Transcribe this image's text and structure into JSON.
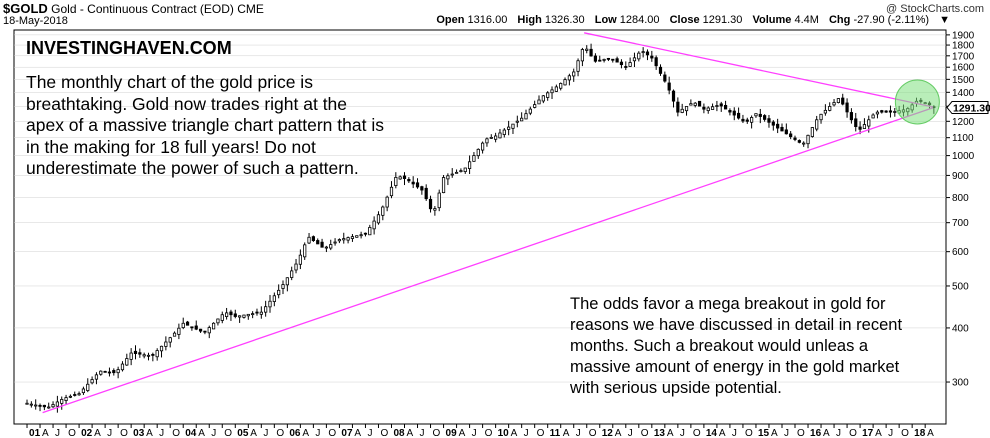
{
  "header": {
    "symbol": "$GOLD",
    "name": "Gold - Continuous Contract (EOD)",
    "exchange": "CME",
    "date": "18-May-2018",
    "open_label": "Open",
    "open": "1316.00",
    "high_label": "High",
    "high": "1326.30",
    "low_label": "Low",
    "low": "1284.00",
    "close_label": "Close",
    "close": "1291.30",
    "volume_label": "Volume",
    "volume": "4.4M",
    "chg_label": "Chg",
    "chg": "-27.90 (-2.11%)",
    "chg_arrow": "▼",
    "credit": "@ StockCharts.com"
  },
  "annotations": {
    "brand": "INVESTINGHAVEN.COM",
    "note1": "The monthly chart of the gold price is breathtaking. Gold now trades right at the apex of a massive triangle chart pattern that is in the making for 18 full years! Do not underestimate the power of such a pattern.",
    "note2": "The odds favor a mega breakout in gold for reasons we have discussed in detail in recent months. Such a breakout would unleas a massive amount of energy in the gold market with serious upside potential."
  },
  "colors": {
    "candle": "#000000",
    "trendline": "#ff3fff",
    "highlight_fill": "#7fe07f",
    "highlight_stroke": "#66cc66",
    "last_price_box": "#ffffff",
    "grid": "#d0d0d0"
  },
  "chart_data": {
    "type": "candlestick",
    "title": "$GOLD Gold - Continuous Contract (EOD) CME",
    "scale": "log",
    "ylim": [
      240,
      1950
    ],
    "y_ticks": [
      300,
      400,
      500,
      600,
      700,
      800,
      900,
      1000,
      1100,
      1200,
      1300,
      1400,
      1500,
      1600,
      1700,
      1800,
      1900
    ],
    "x_tick_labels": [
      "01",
      "A",
      "J",
      "O",
      "02",
      "A",
      "J",
      "O",
      "03",
      "A",
      "J",
      "O",
      "04",
      "A",
      "J",
      "O",
      "05",
      "A",
      "J",
      "O",
      "06",
      "A",
      "J",
      "O",
      "07",
      "A",
      "J",
      "O",
      "08",
      "A",
      "J",
      "O",
      "09",
      "A",
      "J",
      "O",
      "10",
      "A",
      "J",
      "O",
      "11",
      "A",
      "J",
      "O",
      "12",
      "A",
      "J",
      "O",
      "13",
      "A",
      "J",
      "O",
      "14",
      "A",
      "J",
      "O",
      "15",
      "A",
      "J",
      "O",
      "16",
      "A",
      "J",
      "O",
      "17",
      "A",
      "J",
      "O",
      "18",
      "A"
    ],
    "last_price_label": "1291.30",
    "price_path": [
      [
        2001.0,
        268
      ],
      [
        2001.4,
        262
      ],
      [
        2001.7,
        275
      ],
      [
        2002.0,
        282
      ],
      [
        2002.4,
        318
      ],
      [
        2002.7,
        315
      ],
      [
        2003.0,
        350
      ],
      [
        2003.4,
        345
      ],
      [
        2003.8,
        385
      ],
      [
        2004.0,
        410
      ],
      [
        2004.4,
        390
      ],
      [
        2004.8,
        435
      ],
      [
        2005.0,
        425
      ],
      [
        2005.5,
        435
      ],
      [
        2005.9,
        500
      ],
      [
        2006.2,
        570
      ],
      [
        2006.4,
        650
      ],
      [
        2006.7,
        610
      ],
      [
        2007.0,
        640
      ],
      [
        2007.5,
        660
      ],
      [
        2007.8,
        745
      ],
      [
        2008.1,
        900
      ],
      [
        2008.3,
        880
      ],
      [
        2008.6,
        830
      ],
      [
        2008.8,
        730
      ],
      [
        2009.0,
        890
      ],
      [
        2009.4,
        930
      ],
      [
        2009.8,
        1090
      ],
      [
        2010.0,
        1110
      ],
      [
        2010.5,
        1220
      ],
      [
        2010.9,
        1370
      ],
      [
        2011.2,
        1450
      ],
      [
        2011.5,
        1560
      ],
      [
        2011.7,
        1800
      ],
      [
        2011.9,
        1650
      ],
      [
        2012.2,
        1680
      ],
      [
        2012.5,
        1600
      ],
      [
        2012.8,
        1750
      ],
      [
        2013.0,
        1680
      ],
      [
        2013.3,
        1450
      ],
      [
        2013.5,
        1260
      ],
      [
        2013.8,
        1330
      ],
      [
        2014.0,
        1280
      ],
      [
        2014.3,
        1310
      ],
      [
        2014.8,
        1190
      ],
      [
        2015.0,
        1250
      ],
      [
        2015.5,
        1140
      ],
      [
        2015.9,
        1060
      ],
      [
        2016.2,
        1230
      ],
      [
        2016.6,
        1360
      ],
      [
        2016.9,
        1170
      ],
      [
        2017.0,
        1150
      ],
      [
        2017.3,
        1260
      ],
      [
        2017.6,
        1260
      ],
      [
        2017.9,
        1280
      ],
      [
        2018.1,
        1340
      ],
      [
        2018.3,
        1320
      ],
      [
        2018.4,
        1291
      ]
    ],
    "trendlines": [
      {
        "from": [
          2001.3,
          255
        ],
        "to": [
          2018.4,
          1290
        ]
      },
      {
        "from": [
          2011.7,
          1921
        ],
        "to": [
          2018.4,
          1295
        ]
      }
    ],
    "highlight": {
      "x": 2018.1,
      "y": 1330
    }
  }
}
